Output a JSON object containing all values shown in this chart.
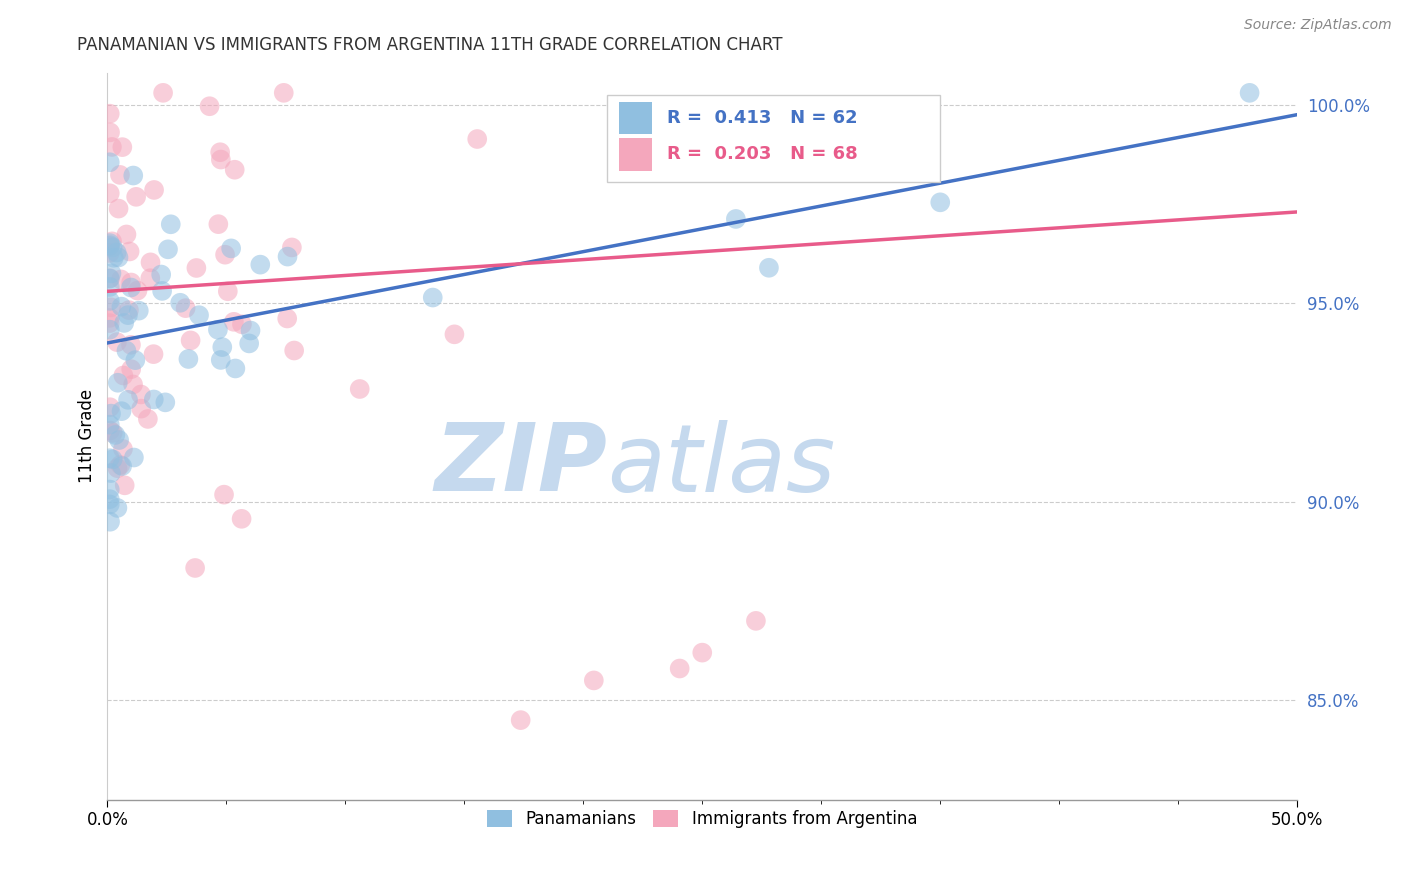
{
  "title": "PANAMANIAN VS IMMIGRANTS FROM ARGENTINA 11TH GRADE CORRELATION CHART",
  "source_text": "Source: ZipAtlas.com",
  "ylabel": "11th Grade",
  "legend_label1": "Panamanians",
  "legend_label2": "Immigrants from Argentina",
  "R1": 0.413,
  "N1": 62,
  "R2": 0.203,
  "N2": 68,
  "xlim": [
    0.0,
    0.5
  ],
  "ylim": [
    0.825,
    1.008
  ],
  "xtick_vals": [
    0.0,
    0.5
  ],
  "xtick_labels": [
    "0.0%",
    "50.0%"
  ],
  "ytick_vals": [
    0.85,
    0.9,
    0.95,
    1.0
  ],
  "ytick_labels": [
    "85.0%",
    "90.0%",
    "95.0%",
    "100.0%"
  ],
  "color_blue": "#90bfe0",
  "color_pink": "#f4a7bc",
  "line_blue": "#4472c4",
  "line_pink": "#e85b8a",
  "watermark_zip": "ZIP",
  "watermark_atlas": "atlas",
  "watermark_color_zip": "#c5d9ee",
  "watermark_color_atlas": "#c5d9ee",
  "background_color": "#ffffff",
  "blue_intercept": 0.94,
  "blue_slope": 0.115,
  "pink_intercept": 0.953,
  "pink_slope": 0.04
}
